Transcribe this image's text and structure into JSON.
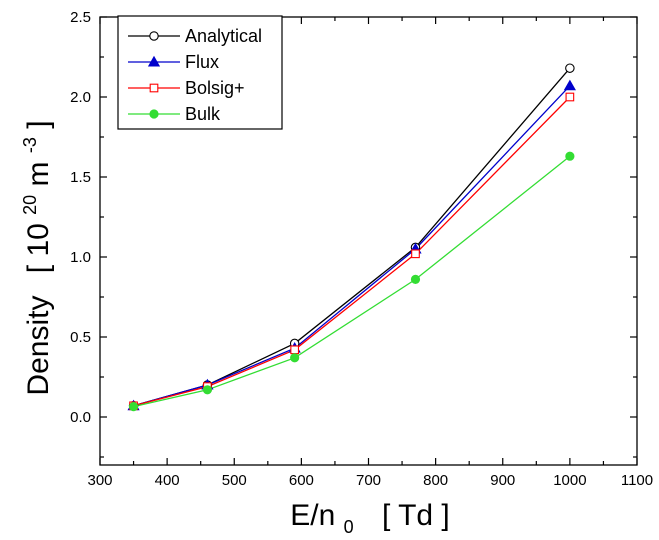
{
  "chart_data": {
    "type": "line",
    "xlabel": {
      "main": "E/n",
      "sub": "0",
      "unit": "[ Td ]"
    },
    "ylabel": {
      "main": "Density",
      "unit_open": "[ 10",
      "unit_exp": "20",
      "unit_mid": " m",
      "unit_exp2": "-3",
      "unit_close": " ]"
    },
    "xlim": [
      300,
      1100
    ],
    "ylim": [
      -0.3,
      2.5
    ],
    "xticks": [
      300,
      400,
      500,
      600,
      700,
      800,
      900,
      1000,
      1100
    ],
    "xtick_labels": [
      "300",
      "400",
      "500",
      "600",
      "700",
      "800",
      "900",
      "1000",
      "1100"
    ],
    "yticks": [
      0.0,
      0.5,
      1.0,
      1.5,
      2.0,
      2.5
    ],
    "ytick_labels": [
      "0.0",
      "0.5",
      "1.0",
      "1.5",
      "2.0",
      "2.5"
    ],
    "grid": false,
    "legend_position": "top-left",
    "x": [
      350,
      460,
      590,
      770,
      1000
    ],
    "series": [
      {
        "name": "Analytical",
        "values": [
          0.07,
          0.2,
          0.46,
          1.06,
          2.18
        ],
        "color": "#000000",
        "marker": "open-circle"
      },
      {
        "name": "Flux",
        "values": [
          0.07,
          0.2,
          0.43,
          1.05,
          2.07
        ],
        "color": "#0000cc",
        "marker": "filled-triangle"
      },
      {
        "name": "Bolsig+",
        "values": [
          0.07,
          0.19,
          0.42,
          1.02,
          2.0
        ],
        "color": "#ff0000",
        "marker": "open-square"
      },
      {
        "name": "Bulk",
        "values": [
          0.065,
          0.17,
          0.37,
          0.86,
          1.63
        ],
        "color": "#33dd33",
        "marker": "filled-circle"
      }
    ]
  }
}
